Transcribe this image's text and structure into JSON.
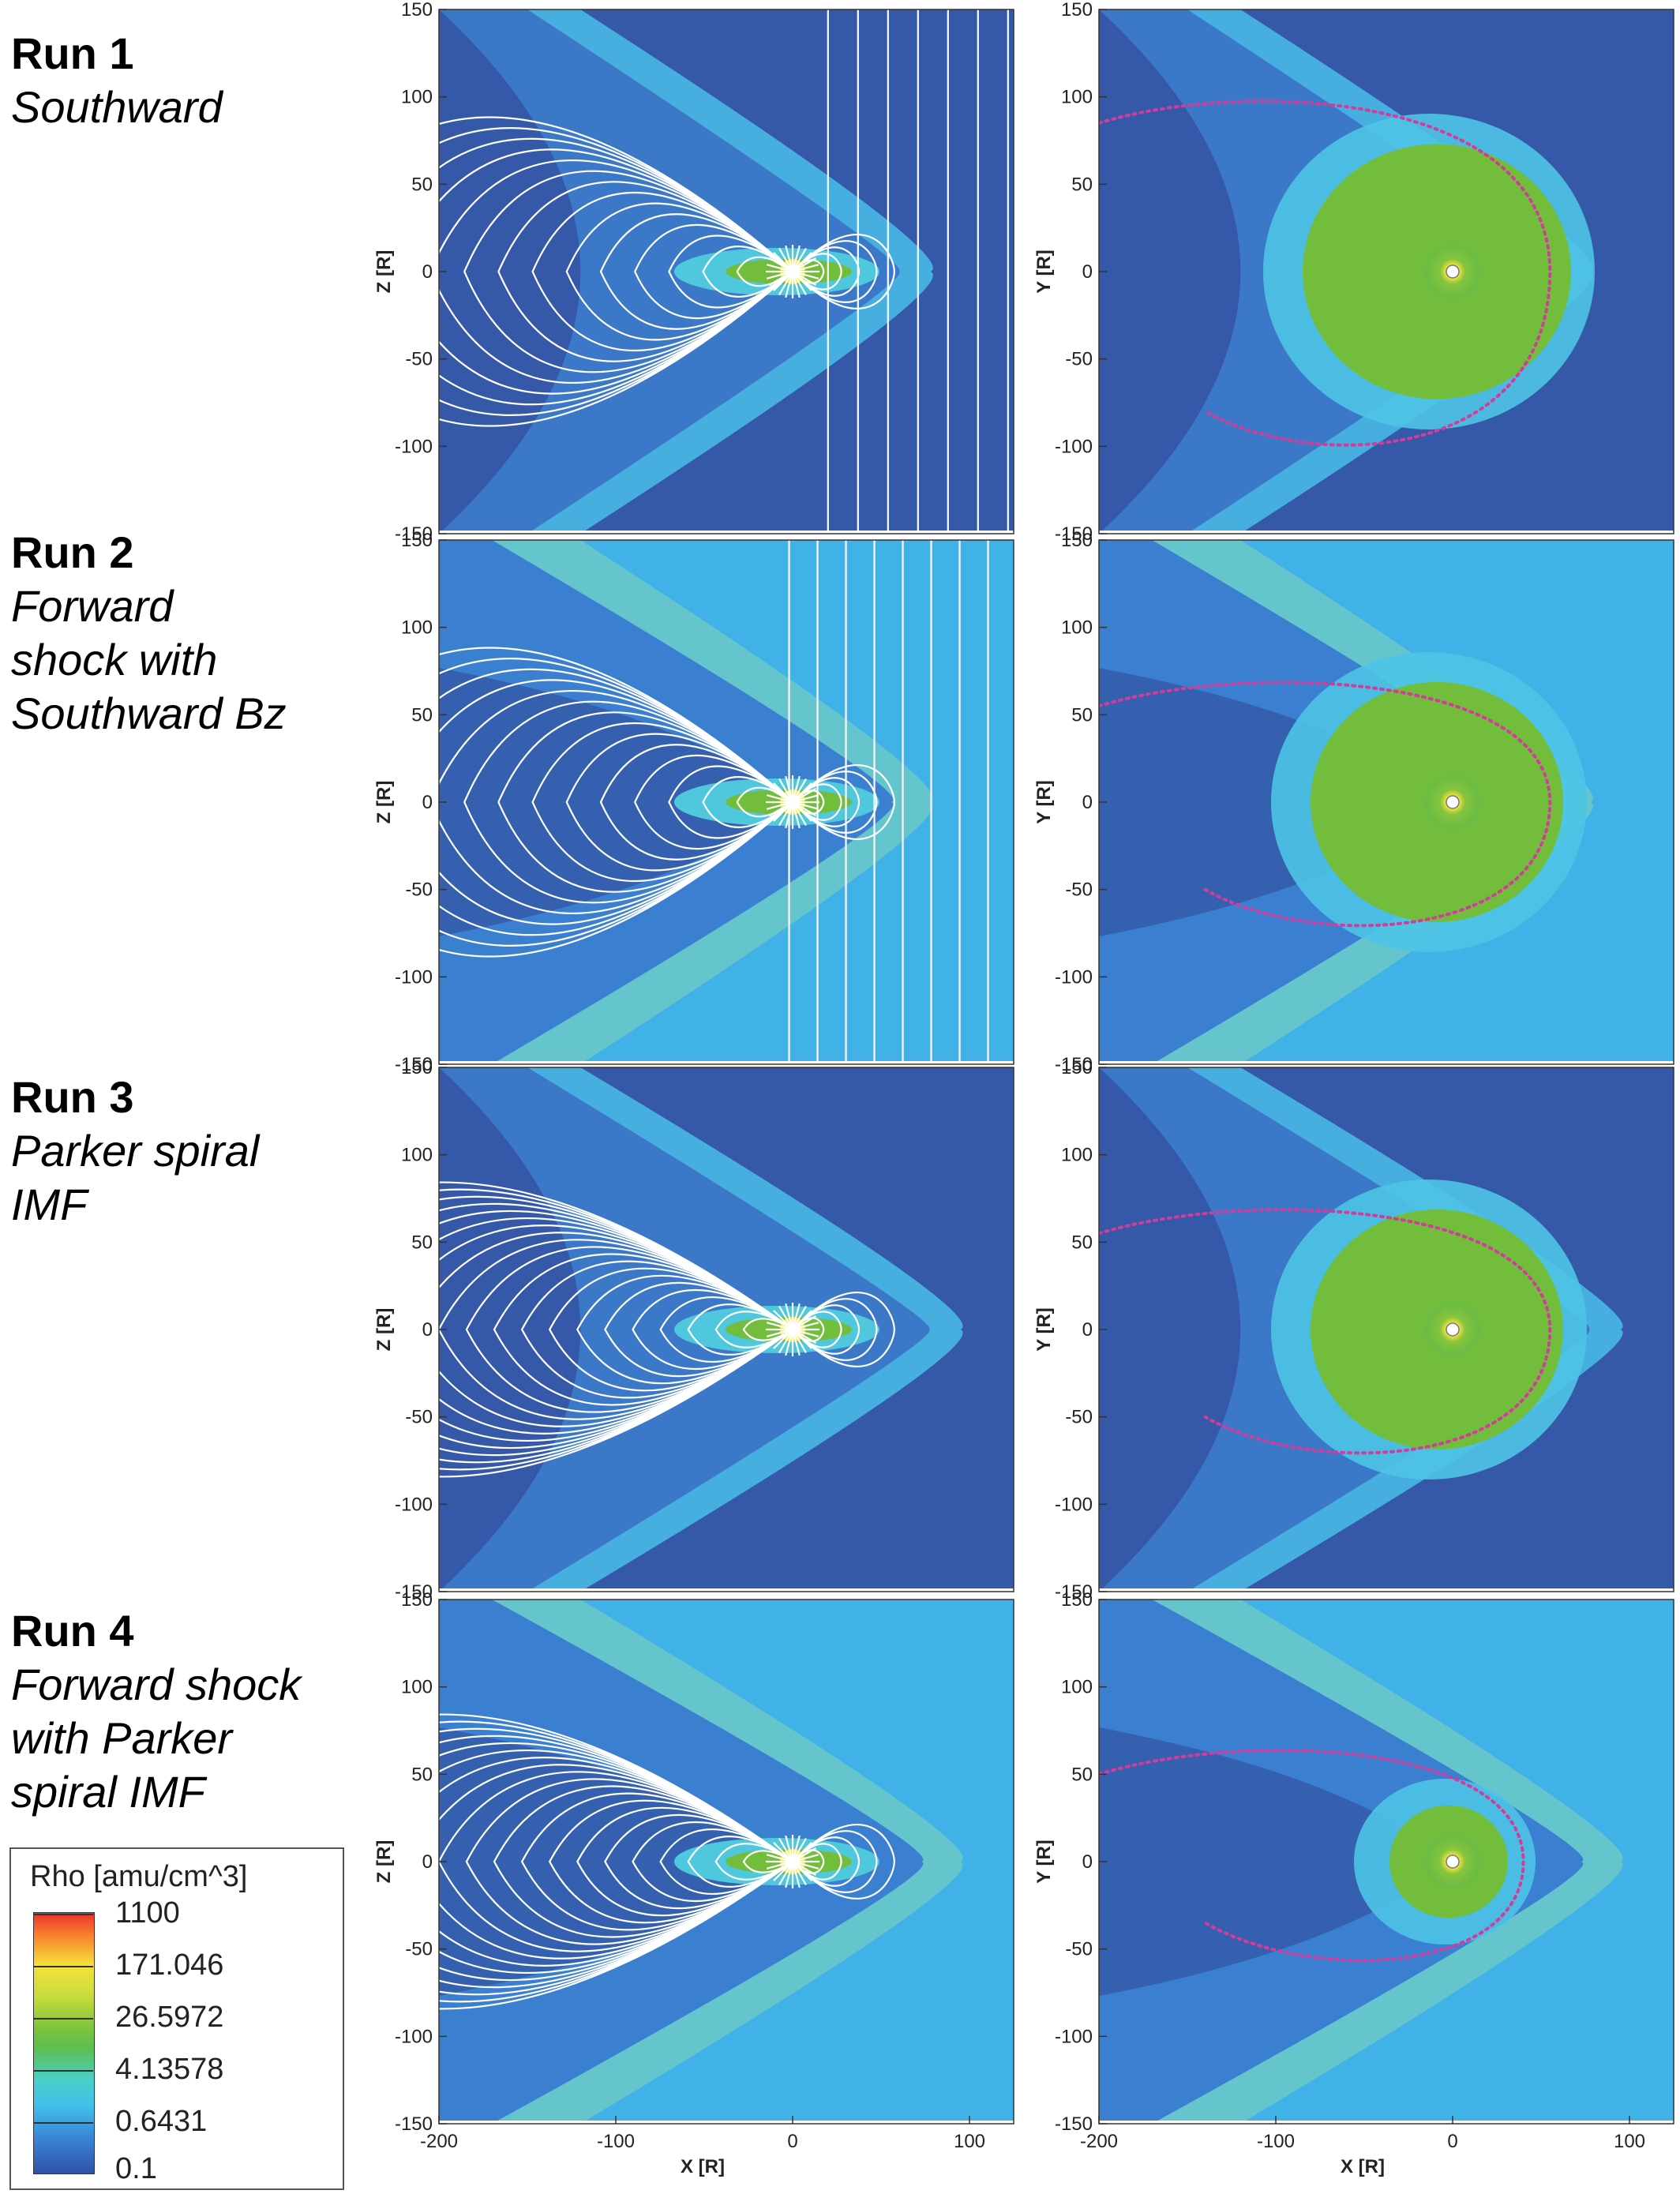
{
  "runs": [
    {
      "title": "Run 1",
      "desc": [
        "Southward"
      ]
    },
    {
      "title": "Run 2",
      "desc": [
        "Forward",
        "shock with",
        "Southward Bz"
      ]
    },
    {
      "title": "Run 3",
      "desc": [
        "Parker spiral",
        "IMF"
      ]
    },
    {
      "title": "Run 4",
      "desc": [
        "Forward shock",
        "with Parker",
        "spiral IMF"
      ]
    }
  ],
  "axes": {
    "left_ylabel": "Z [R]",
    "right_ylabel": "Y [R]",
    "xlabel": "X [R]",
    "xticks": [
      "-200",
      "-100",
      "0",
      "100"
    ],
    "yticks": [
      "150",
      "100",
      "50",
      "0",
      "-50",
      "-100",
      "-150"
    ]
  },
  "legend": {
    "title": "Rho [amu/cm^3]",
    "values": [
      "1100",
      "171.046",
      "26.5972",
      "4.13578",
      "0.6431",
      "0.1"
    ],
    "colors": [
      "#e8322b",
      "#f6e23a",
      "#7ec43c",
      "#5cbf50",
      "#40c0ec",
      "#3050a8"
    ]
  },
  "colors": {
    "bg_dark": "#3558a8",
    "bg_light": "#41b2e8",
    "sheath": "#4ec4e6",
    "core_green": "#72be3c",
    "core_yellow": "#f3ea3c",
    "boundary_pink": "#d23c9a",
    "field_lines": "#ffffff"
  }
}
